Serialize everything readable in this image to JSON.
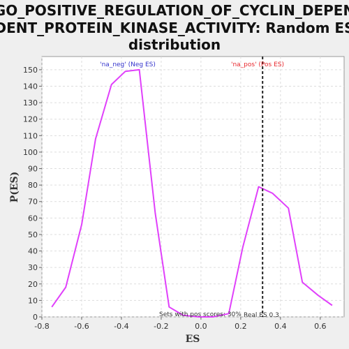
{
  "chart_data": {
    "type": "line",
    "title_lines": [
      "GO_POSITIVE_REGULATION_OF_CYCLIN_DEPEN",
      "DENT_PROTEIN_KINASE_ACTIVITY: Random ES",
      "distribution"
    ],
    "xlabel": "ES",
    "ylabel": "P(ES)",
    "xlim": [
      -0.8,
      0.72
    ],
    "ylim": [
      0,
      158
    ],
    "xticks": [
      -0.8,
      -0.6,
      -0.4,
      -0.2,
      0.0,
      0.2,
      0.4,
      0.6
    ],
    "xtick_labels": [
      "-0.8",
      "-0.6",
      "-0.4",
      "-0.2",
      "0.0",
      "0.2",
      "0.4",
      "0.6"
    ],
    "yticks": [
      0,
      10,
      20,
      30,
      40,
      50,
      60,
      70,
      80,
      90,
      100,
      110,
      120,
      130,
      140,
      150
    ],
    "grid": true,
    "series": [
      {
        "color": "#e040fb",
        "x": [
          -0.75,
          -0.68,
          -0.6,
          -0.53,
          -0.45,
          -0.38,
          -0.31,
          -0.23,
          -0.16,
          -0.09,
          -0.01,
          0.06,
          0.14,
          0.21,
          0.29,
          0.36,
          0.44,
          0.51,
          0.59,
          0.66
        ],
        "y": [
          6,
          18,
          56,
          108,
          141,
          149,
          150,
          63,
          6,
          1,
          0,
          0,
          2,
          42,
          79,
          75,
          66,
          21,
          13,
          7
        ]
      }
    ],
    "real_es": {
      "value": 0.31,
      "label": "Real ES 0.3",
      "color": "#222222"
    },
    "annotations": {
      "neg_label": "'na_neg' (Neg ES)",
      "neg_color": "#3333cc",
      "pos_label": "'na_pos' (Pos ES)",
      "pos_color": "#e8262b",
      "sets_label": "Sets with pos scores: 30%",
      "sets_color": "#333333"
    },
    "background": "#efefef",
    "plot_background": "#ffffff"
  }
}
